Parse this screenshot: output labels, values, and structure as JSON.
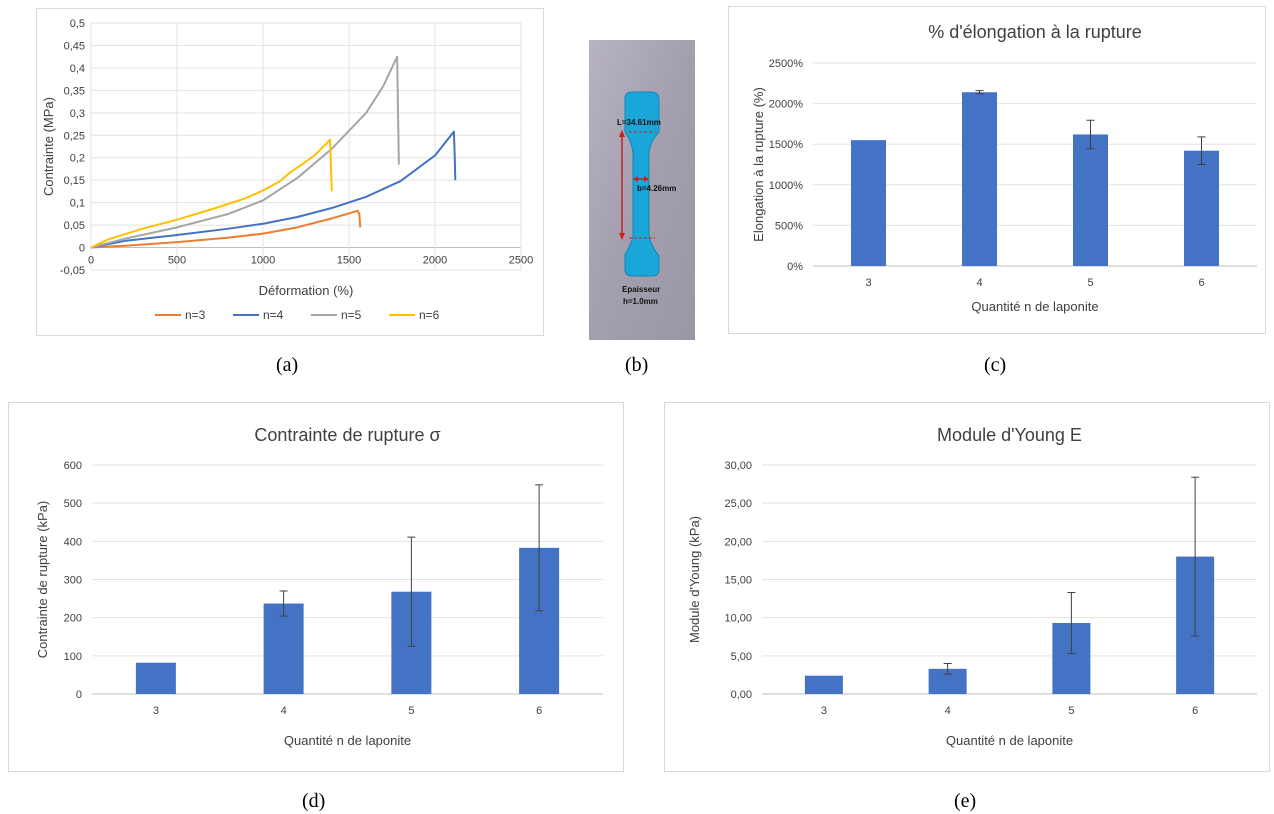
{
  "panel_labels": {
    "a": "(a)",
    "b": "(b)",
    "c": "(c)",
    "d": "(d)",
    "e": "(e)"
  },
  "specimen": {
    "length_label": "L=34.61mm",
    "width_label": "b=4.26mm",
    "thickness_label_1": "Epaisseur",
    "thickness_label_2": "h=1.0mm",
    "colors": {
      "gel": "#1aa6d8",
      "background": "#a9a4b4",
      "arrow": "#cc1f1f"
    }
  },
  "chart_data": [
    {
      "id": "a",
      "type": "line",
      "title": "",
      "xlabel": "Déformation (%)",
      "ylabel": "Contrainte (MPa)",
      "xlim": [
        0,
        2500
      ],
      "ylim": [
        -0.05,
        0.5
      ],
      "xticks": [
        0,
        500,
        1000,
        1500,
        2000,
        2500
      ],
      "xtick_labels": [
        "0",
        "500",
        "1000",
        "1500",
        "2000",
        "2500"
      ],
      "yticks": [
        -0.05,
        0,
        0.05,
        0.1,
        0.15,
        0.2,
        0.25,
        0.3,
        0.35,
        0.4,
        0.45,
        0.5
      ],
      "ytick_labels": [
        "-0,05",
        "0",
        "0,05",
        "0,1",
        "0,15",
        "0,2",
        "0,25",
        "0,3",
        "0,35",
        "0,4",
        "0,45",
        "0,5"
      ],
      "grid": true,
      "legend": "bottom",
      "series": [
        {
          "name": "n=3",
          "color": "#ed7d31",
          "x": [
            0,
            200,
            500,
            800,
            1000,
            1200,
            1400,
            1500,
            1550,
            1560,
            1565
          ],
          "y": [
            0,
            0.004,
            0.012,
            0.022,
            0.031,
            0.045,
            0.065,
            0.076,
            0.082,
            0.075,
            0.045
          ]
        },
        {
          "name": "n=4",
          "color": "#4472c4",
          "x": [
            0,
            200,
            500,
            800,
            1000,
            1200,
            1400,
            1600,
            1800,
            2000,
            2110,
            2115,
            2118
          ],
          "y": [
            0,
            0.015,
            0.028,
            0.042,
            0.053,
            0.068,
            0.088,
            0.113,
            0.148,
            0.205,
            0.258,
            0.2,
            0.15
          ]
        },
        {
          "name": "n=5",
          "color": "#a5a5a5",
          "x": [
            0,
            200,
            500,
            800,
            1000,
            1200,
            1400,
            1600,
            1700,
            1780,
            1785,
            1790
          ],
          "y": [
            0,
            0.02,
            0.045,
            0.075,
            0.105,
            0.155,
            0.22,
            0.3,
            0.36,
            0.425,
            0.3,
            0.185
          ]
        },
        {
          "name": "n=6",
          "color": "#ffc000",
          "x": [
            0,
            100,
            300,
            500,
            700,
            900,
            1000,
            1100,
            1150,
            1200,
            1300,
            1390,
            1395,
            1400
          ],
          "y": [
            0,
            0.018,
            0.042,
            0.062,
            0.085,
            0.11,
            0.127,
            0.148,
            0.165,
            0.178,
            0.205,
            0.24,
            0.18,
            0.125
          ]
        }
      ]
    },
    {
      "id": "c",
      "type": "bar",
      "title": "% d'élongation à la rupture",
      "xlabel": "Quantité n de laponite",
      "ylabel": "Elongation à la rupture (%)",
      "ylim": [
        0,
        2500
      ],
      "yticks": [
        0,
        500,
        1000,
        1500,
        2000,
        2500
      ],
      "ytick_labels": [
        "0%",
        "500%",
        "1000%",
        "1500%",
        "2000%",
        "2500%"
      ],
      "grid": true,
      "categories": [
        "3",
        "4",
        "5",
        "6"
      ],
      "values": [
        1550,
        2140,
        1620,
        1420
      ],
      "errors": [
        0,
        20,
        175,
        170
      ],
      "color": "#4472c4"
    },
    {
      "id": "d",
      "type": "bar",
      "title": "Contrainte de rupture σ",
      "xlabel": "Quantité n de laponite",
      "ylabel": "Contrainte de rupture (kPa)",
      "ylim": [
        0,
        600
      ],
      "yticks": [
        0,
        100,
        200,
        300,
        400,
        500,
        600
      ],
      "ytick_labels": [
        "0",
        "100",
        "200",
        "300",
        "400",
        "500",
        "600"
      ],
      "grid": true,
      "categories": [
        "3",
        "4",
        "5",
        "6"
      ],
      "values": [
        82,
        237,
        268,
        383
      ],
      "errors": [
        0,
        33,
        143,
        165
      ],
      "color": "#4472c4"
    },
    {
      "id": "e",
      "type": "bar",
      "title": "Module d'Young E",
      "xlabel": "Quantité n de laponite",
      "ylabel": "Module d'Young (kPa)",
      "ylim": [
        0,
        30
      ],
      "yticks": [
        0,
        5,
        10,
        15,
        20,
        25,
        30
      ],
      "ytick_labels": [
        "0,00",
        "5,00",
        "10,00",
        "15,00",
        "20,00",
        "25,00",
        "30,00"
      ],
      "grid": true,
      "categories": [
        "3",
        "4",
        "5",
        "6"
      ],
      "values": [
        2.4,
        3.3,
        9.3,
        18.0
      ],
      "errors": [
        0,
        0.7,
        4.0,
        10.4
      ],
      "color": "#4472c4"
    }
  ]
}
